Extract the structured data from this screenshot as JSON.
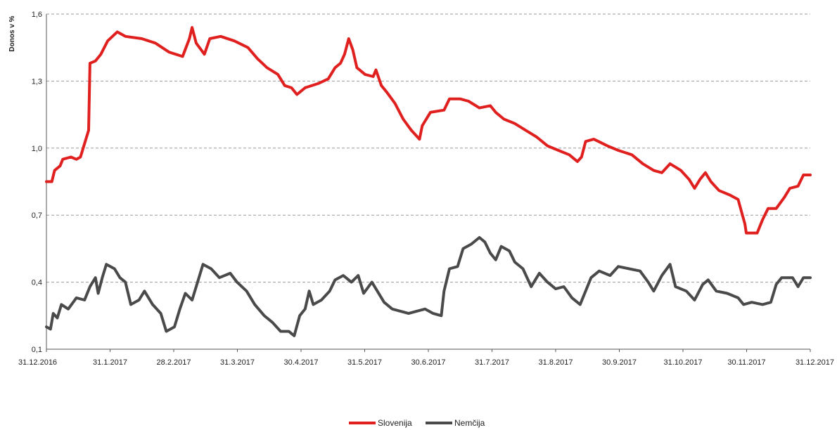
{
  "chart_data": {
    "type": "line",
    "title": "",
    "xlabel": "",
    "ylabel": "Donos v %",
    "ylim": [
      0.1,
      1.6
    ],
    "yticks": [
      "0,1",
      "0,4",
      "0,7",
      "1,0",
      "1,3",
      "1,6"
    ],
    "ytick_values": [
      0.1,
      0.4,
      0.7,
      1.0,
      1.3,
      1.6
    ],
    "xticks": [
      "31.12.2016",
      "31.1.2017",
      "28.2.2017",
      "31.3.2017",
      "30.4.2017",
      "31.5.2017",
      "30.6.2017",
      "31.7.2017",
      "31.8.2017",
      "30.9.2017",
      "31.10.2017",
      "30.11.2017",
      "31.12.2017"
    ],
    "grid": "horizontal dashed",
    "legend": "bottom-center",
    "series": [
      {
        "name": "Slovenija",
        "color": "#e01f1f",
        "points": [
          [
            0,
            0.85
          ],
          [
            4,
            0.85
          ],
          [
            6,
            0.9
          ],
          [
            10,
            0.92
          ],
          [
            12,
            0.95
          ],
          [
            18,
            0.96
          ],
          [
            22,
            0.95
          ],
          [
            25,
            0.96
          ],
          [
            28,
            1.02
          ],
          [
            31,
            1.08
          ],
          [
            32,
            1.38
          ],
          [
            36,
            1.39
          ],
          [
            40,
            1.42
          ],
          [
            45,
            1.48
          ],
          [
            52,
            1.52
          ],
          [
            58,
            1.5
          ],
          [
            70,
            1.49
          ],
          [
            80,
            1.47
          ],
          [
            90,
            1.43
          ],
          [
            100,
            1.41
          ],
          [
            105,
            1.49
          ],
          [
            107,
            1.54
          ],
          [
            110,
            1.47
          ],
          [
            116,
            1.42
          ],
          [
            120,
            1.49
          ],
          [
            128,
            1.5
          ],
          [
            138,
            1.48
          ],
          [
            148,
            1.45
          ],
          [
            155,
            1.4
          ],
          [
            162,
            1.36
          ],
          [
            170,
            1.33
          ],
          [
            175,
            1.28
          ],
          [
            180,
            1.27
          ],
          [
            184,
            1.24
          ],
          [
            190,
            1.27
          ],
          [
            200,
            1.29
          ],
          [
            207,
            1.31
          ],
          [
            212,
            1.36
          ],
          [
            216,
            1.38
          ],
          [
            219,
            1.42
          ],
          [
            222,
            1.49
          ],
          [
            225,
            1.44
          ],
          [
            228,
            1.36
          ],
          [
            234,
            1.33
          ],
          [
            240,
            1.32
          ],
          [
            242,
            1.35
          ],
          [
            246,
            1.28
          ],
          [
            250,
            1.25
          ],
          [
            256,
            1.2
          ],
          [
            262,
            1.13
          ],
          [
            268,
            1.08
          ],
          [
            274,
            1.04
          ],
          [
            276,
            1.1
          ],
          [
            282,
            1.16
          ],
          [
            292,
            1.17
          ],
          [
            296,
            1.22
          ],
          [
            304,
            1.22
          ],
          [
            310,
            1.21
          ],
          [
            318,
            1.18
          ],
          [
            326,
            1.19
          ],
          [
            330,
            1.16
          ],
          [
            336,
            1.13
          ],
          [
            344,
            1.11
          ],
          [
            352,
            1.08
          ],
          [
            360,
            1.05
          ],
          [
            368,
            1.01
          ],
          [
            376,
            0.99
          ],
          [
            384,
            0.97
          ],
          [
            390,
            0.94
          ],
          [
            393,
            0.96
          ],
          [
            396,
            1.03
          ],
          [
            402,
            1.04
          ],
          [
            412,
            1.01
          ],
          [
            420,
            0.99
          ],
          [
            430,
            0.97
          ],
          [
            438,
            0.93
          ],
          [
            446,
            0.9
          ],
          [
            452,
            0.89
          ],
          [
            458,
            0.93
          ],
          [
            466,
            0.9
          ],
          [
            472,
            0.86
          ],
          [
            476,
            0.82
          ],
          [
            480,
            0.86
          ],
          [
            484,
            0.89
          ],
          [
            488,
            0.85
          ],
          [
            494,
            0.81
          ],
          [
            502,
            0.79
          ],
          [
            508,
            0.77
          ],
          [
            513,
            0.66
          ],
          [
            514,
            0.62
          ],
          [
            522,
            0.62
          ],
          [
            526,
            0.68
          ],
          [
            530,
            0.73
          ],
          [
            536,
            0.73
          ],
          [
            542,
            0.78
          ],
          [
            546,
            0.82
          ],
          [
            552,
            0.83
          ],
          [
            556,
            0.88
          ],
          [
            561,
            0.88
          ]
        ]
      },
      {
        "name": "Nemčija",
        "color": "#4a4a4a",
        "points": [
          [
            0,
            0.2
          ],
          [
            3,
            0.19
          ],
          [
            5,
            0.26
          ],
          [
            8,
            0.24
          ],
          [
            11,
            0.3
          ],
          [
            16,
            0.28
          ],
          [
            22,
            0.33
          ],
          [
            28,
            0.32
          ],
          [
            32,
            0.38
          ],
          [
            36,
            0.42
          ],
          [
            38,
            0.35
          ],
          [
            41,
            0.42
          ],
          [
            44,
            0.48
          ],
          [
            50,
            0.46
          ],
          [
            54,
            0.42
          ],
          [
            58,
            0.4
          ],
          [
            62,
            0.3
          ],
          [
            68,
            0.32
          ],
          [
            72,
            0.36
          ],
          [
            78,
            0.3
          ],
          [
            84,
            0.26
          ],
          [
            88,
            0.18
          ],
          [
            94,
            0.2
          ],
          [
            98,
            0.28
          ],
          [
            102,
            0.35
          ],
          [
            107,
            0.32
          ],
          [
            111,
            0.4
          ],
          [
            115,
            0.48
          ],
          [
            121,
            0.46
          ],
          [
            127,
            0.42
          ],
          [
            135,
            0.44
          ],
          [
            140,
            0.4
          ],
          [
            147,
            0.36
          ],
          [
            153,
            0.3
          ],
          [
            160,
            0.25
          ],
          [
            166,
            0.22
          ],
          [
            172,
            0.18
          ],
          [
            178,
            0.18
          ],
          [
            182,
            0.16
          ],
          [
            186,
            0.25
          ],
          [
            190,
            0.28
          ],
          [
            193,
            0.36
          ],
          [
            196,
            0.3
          ],
          [
            202,
            0.32
          ],
          [
            208,
            0.36
          ],
          [
            212,
            0.41
          ],
          [
            218,
            0.43
          ],
          [
            224,
            0.4
          ],
          [
            229,
            0.43
          ],
          [
            233,
            0.35
          ],
          [
            239,
            0.4
          ],
          [
            242,
            0.37
          ],
          [
            248,
            0.31
          ],
          [
            254,
            0.28
          ],
          [
            260,
            0.27
          ],
          [
            266,
            0.26
          ],
          [
            272,
            0.27
          ],
          [
            278,
            0.28
          ],
          [
            284,
            0.26
          ],
          [
            290,
            0.25
          ],
          [
            292,
            0.36
          ],
          [
            296,
            0.46
          ],
          [
            302,
            0.47
          ],
          [
            306,
            0.55
          ],
          [
            312,
            0.57
          ],
          [
            318,
            0.6
          ],
          [
            322,
            0.58
          ],
          [
            326,
            0.53
          ],
          [
            330,
            0.5
          ],
          [
            334,
            0.56
          ],
          [
            340,
            0.54
          ],
          [
            344,
            0.49
          ],
          [
            350,
            0.46
          ],
          [
            356,
            0.38
          ],
          [
            362,
            0.44
          ],
          [
            368,
            0.4
          ],
          [
            374,
            0.37
          ],
          [
            380,
            0.38
          ],
          [
            386,
            0.33
          ],
          [
            392,
            0.3
          ],
          [
            396,
            0.36
          ],
          [
            400,
            0.42
          ],
          [
            406,
            0.45
          ],
          [
            414,
            0.43
          ],
          [
            420,
            0.47
          ],
          [
            428,
            0.46
          ],
          [
            436,
            0.45
          ],
          [
            442,
            0.4
          ],
          [
            446,
            0.36
          ],
          [
            452,
            0.43
          ],
          [
            458,
            0.48
          ],
          [
            462,
            0.38
          ],
          [
            470,
            0.36
          ],
          [
            476,
            0.32
          ],
          [
            482,
            0.39
          ],
          [
            486,
            0.41
          ],
          [
            492,
            0.36
          ],
          [
            500,
            0.35
          ],
          [
            508,
            0.33
          ],
          [
            512,
            0.3
          ],
          [
            518,
            0.31
          ],
          [
            526,
            0.3
          ],
          [
            532,
            0.31
          ],
          [
            536,
            0.39
          ],
          [
            540,
            0.42
          ],
          [
            548,
            0.42
          ],
          [
            552,
            0.38
          ],
          [
            556,
            0.42
          ],
          [
            561,
            0.42
          ]
        ]
      }
    ]
  }
}
